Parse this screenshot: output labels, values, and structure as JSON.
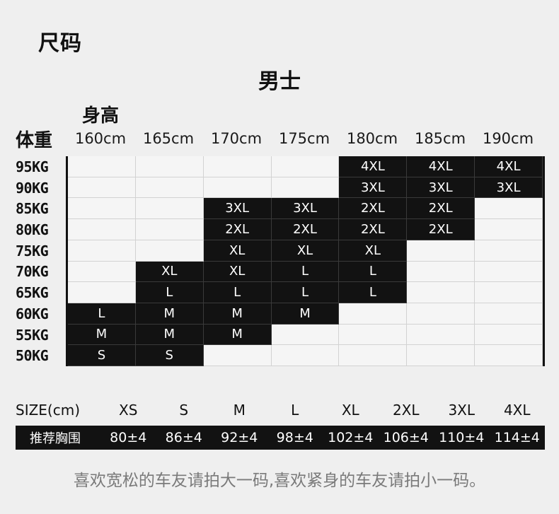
{
  "title": "尺码",
  "section_title": "男士",
  "height_label": "身高",
  "weight_label": "体重",
  "heights": [
    "160cm",
    "165cm",
    "170cm",
    "175cm",
    "180cm",
    "185cm",
    "190cm"
  ],
  "weights": [
    "95KG",
    "90KG",
    "85KG",
    "80KG",
    "75KG",
    "70KG",
    "65KG",
    "60KG",
    "55KG",
    "50KG"
  ],
  "grid": [
    [
      "",
      "",
      "",
      "",
      "4XL",
      "4XL",
      "4XL"
    ],
    [
      "",
      "",
      "",
      "",
      "3XL",
      "3XL",
      "3XL"
    ],
    [
      "",
      "",
      "3XL",
      "3XL",
      "2XL",
      "2XL",
      ""
    ],
    [
      "",
      "",
      "2XL",
      "2XL",
      "2XL",
      "2XL",
      ""
    ],
    [
      "",
      "",
      "XL",
      "XL",
      "XL",
      "",
      ""
    ],
    [
      "",
      "XL",
      "XL",
      "L",
      "L",
      "",
      ""
    ],
    [
      "",
      "L",
      "L",
      "L",
      "L",
      "",
      ""
    ],
    [
      "L",
      "M",
      "M",
      "M",
      "",
      "",
      ""
    ],
    [
      "M",
      "M",
      "M",
      "",
      "",
      "",
      ""
    ],
    [
      "S",
      "S",
      "",
      "",
      "",
      "",
      ""
    ]
  ],
  "size_table": {
    "size_label": "SIZE(cm)",
    "sizes": [
      "XS",
      "S",
      "M",
      "L",
      "XL",
      "2XL",
      "3XL",
      "4XL"
    ],
    "chest_label": "推荐胸围",
    "chest": [
      "80±4",
      "86±4",
      "92±4",
      "98±4",
      "102±4",
      "106±4",
      "110±4",
      "114±4"
    ]
  },
  "footnote": "喜欢宽松的车友请拍大一码,喜欢紧身的车友请拍小一码。"
}
